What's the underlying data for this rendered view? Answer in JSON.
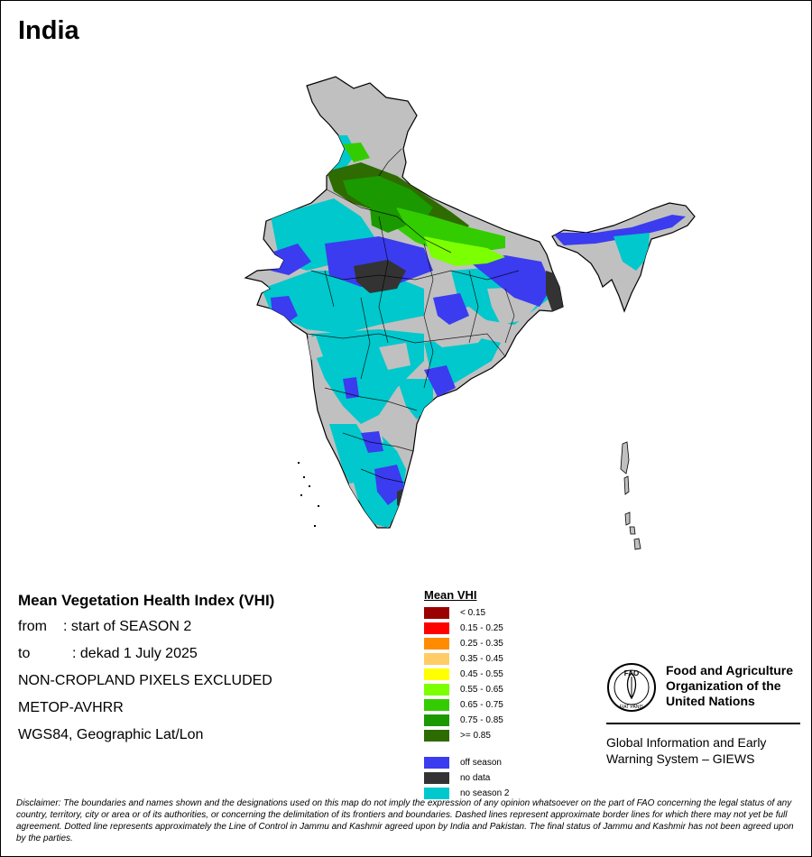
{
  "map_title": "India",
  "info": {
    "heading": "Mean Vegetation Health Index (VHI)",
    "from_label": "from",
    "from_value": ": start of SEASON 2",
    "to_label": "to",
    "to_value": ": dekad 1 July 2025",
    "line3": "NON-CROPLAND PIXELS EXCLUDED",
    "line4": "METOP-AVHRR",
    "line5": "WGS84, Geographic Lat/Lon"
  },
  "legend": {
    "title": "Mean VHI",
    "classes": [
      {
        "label": "< 0.15",
        "color": "#9b0000"
      },
      {
        "label": "0.15 - 0.25",
        "color": "#ff0000"
      },
      {
        "label": "0.25 - 0.35",
        "color": "#ff8c00"
      },
      {
        "label": "0.35 - 0.45",
        "color": "#ffcc66"
      },
      {
        "label": "0.45 - 0.55",
        "color": "#ffff00"
      },
      {
        "label": "0.55 - 0.65",
        "color": "#7cff00"
      },
      {
        "label": "0.65 - 0.75",
        "color": "#33cc00"
      },
      {
        "label": "0.75 - 0.85",
        "color": "#1a9900"
      },
      {
        "label": ">= 0.85",
        "color": "#2e6b00"
      }
    ],
    "special": [
      {
        "label": "off season",
        "color": "#3b3bf0"
      },
      {
        "label": "no data",
        "color": "#333333"
      },
      {
        "label": "no season 2",
        "color": "#00c8cc"
      }
    ]
  },
  "colors": {
    "non_cropland": "#c0c0c0",
    "border": "#000000"
  },
  "fao": {
    "logo_text": "FAO",
    "logo_motto": "FIAT PANIS",
    "name_line1": "Food and Agriculture",
    "name_line2": "Organization of the",
    "name_line3": "United Nations",
    "giews_line1": "Global Information and Early",
    "giews_line2": "Warning System – GIEWS"
  },
  "disclaimer": "Disclaimer: The boundaries and names shown and the designations used on this map do not imply the expression of any opinion whatsoever on the part of FAO concerning the legal status of any country, territory, city or area or of its authorities, or concerning the delimitation of its frontiers and boundaries. Dashed lines represent approximate border lines for which there may not yet be full agreement. Dotted line represents approximately the Line of Control in Jammu and Kashmir agreed upon by India and Pakistan. The final status of Jammu and Kashmir has not been agreed upon by the parties."
}
